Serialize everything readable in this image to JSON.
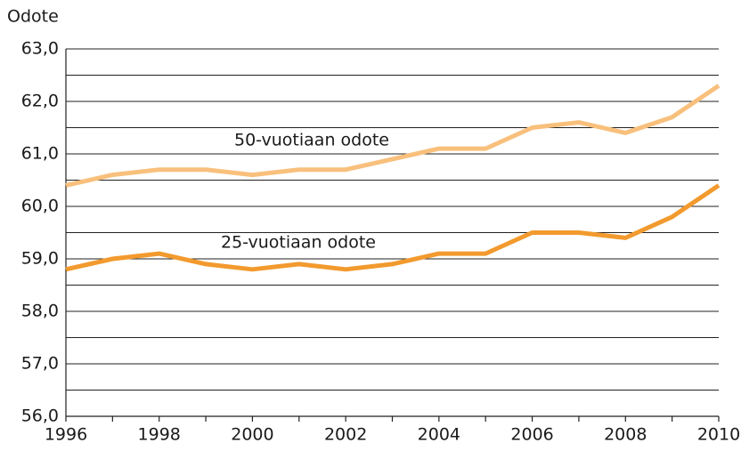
{
  "chart_data": {
    "type": "line",
    "y_label": "Odote",
    "x": [
      1996,
      1997,
      1998,
      1999,
      2000,
      2001,
      2002,
      2003,
      2004,
      2005,
      2006,
      2007,
      2008,
      2009,
      2010
    ],
    "series": [
      {
        "name": "50-vuotiaan odote",
        "color": "#f8c07c",
        "values": [
          60.4,
          60.6,
          60.7,
          60.7,
          60.6,
          60.7,
          60.7,
          60.9,
          61.1,
          61.1,
          61.5,
          61.6,
          61.4,
          61.7,
          62.3
        ]
      },
      {
        "name": "25-vuotiaan odote",
        "color": "#f29a2e",
        "values": [
          58.8,
          59.0,
          59.1,
          58.9,
          58.8,
          58.9,
          58.8,
          58.9,
          59.1,
          59.1,
          59.5,
          59.5,
          59.4,
          59.8,
          60.4
        ]
      }
    ],
    "xlim": [
      1996,
      2010
    ],
    "xticks": [
      1996,
      1998,
      2000,
      2002,
      2004,
      2006,
      2008,
      2010
    ],
    "x_minor_ticks": [
      1997,
      1999,
      2001,
      2003,
      2005,
      2007,
      2009
    ],
    "ylim": [
      56,
      63
    ],
    "yticks": [
      {
        "value": 56,
        "label": "56,0"
      },
      {
        "value": 57,
        "label": "57,0"
      },
      {
        "value": 58,
        "label": "58,0"
      },
      {
        "value": 59,
        "label": "59,0"
      },
      {
        "value": 60,
        "label": "60,0"
      },
      {
        "value": 61,
        "label": "61,0"
      },
      {
        "value": 62,
        "label": "62,0"
      },
      {
        "value": 63,
        "label": "63,0"
      }
    ],
    "y_minor_ticks": [
      56.5,
      57.5,
      58.5,
      59.5,
      60.5,
      61.5,
      62.5
    ],
    "grid": true
  }
}
